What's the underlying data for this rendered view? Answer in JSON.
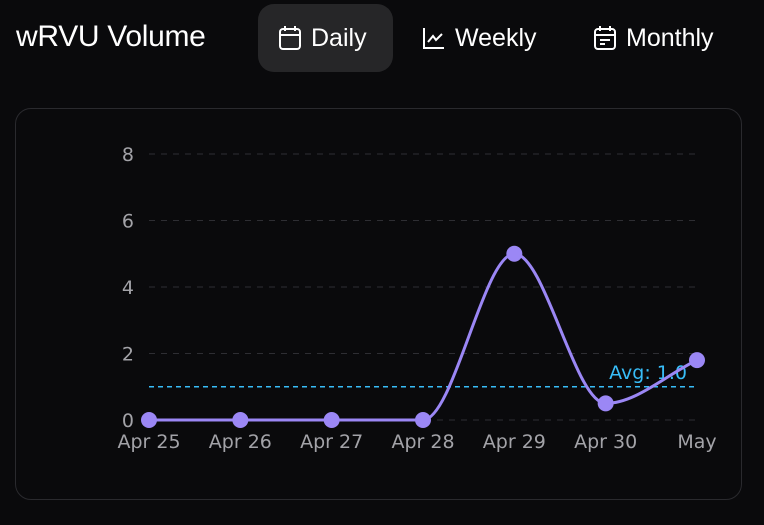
{
  "header": {
    "title": "wRVU Volume"
  },
  "tabs": [
    {
      "label": "Daily",
      "icon": "calendar-icon",
      "active": true
    },
    {
      "label": "Weekly",
      "icon": "line-chart-icon",
      "active": false
    },
    {
      "label": "Monthly",
      "icon": "calendar-list-icon",
      "active": false
    }
  ],
  "chart_data": {
    "type": "line",
    "categories": [
      "Apr 25",
      "Apr 26",
      "Apr 27",
      "Apr 28",
      "Apr 29",
      "Apr 30",
      "May"
    ],
    "values": [
      0,
      0,
      0,
      0,
      5,
      0.5,
      1.8
    ],
    "ylim": [
      0,
      8
    ],
    "yticks": [
      0,
      2,
      4,
      6,
      8
    ],
    "grid": true,
    "average": {
      "value": 1.0,
      "label": "Avg: 1.0"
    },
    "colors": {
      "line": "#9b87f5",
      "average": "#38bdf8",
      "grid": "#2e2e33"
    }
  }
}
